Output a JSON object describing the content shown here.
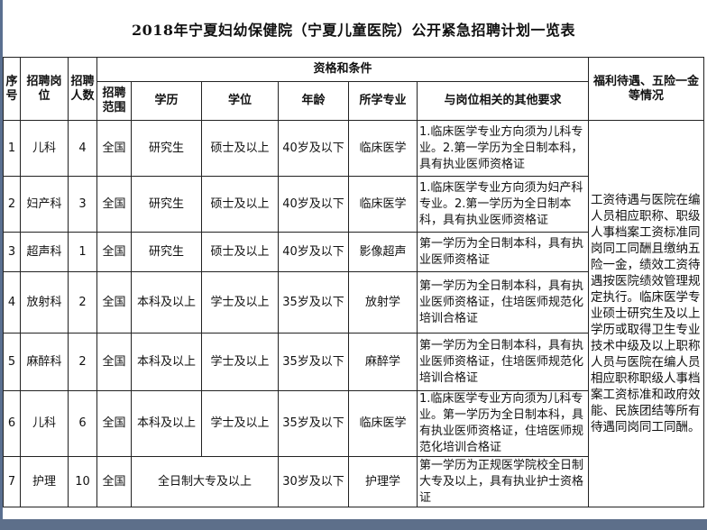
{
  "title": "2018年宁夏妇幼保健院（宁夏儿童医院）公开紧急招聘计划一览表",
  "headers": {
    "index": "序号",
    "position": "招聘岗位",
    "count": "招聘人数",
    "qualifications": "资格和条件",
    "scope": "招聘范围",
    "education": "学历",
    "degree": "学位",
    "age": "年龄",
    "major": "所学专业",
    "other": "与岗位相关的其他要求",
    "benefits": "福利待遇、五险一金等情况"
  },
  "rows": [
    {
      "index": "1",
      "position": "儿科",
      "count": "4",
      "scope": "全国",
      "education": "研究生",
      "degree": "硕士及以上",
      "age": "40岁及以下",
      "major": "临床医学",
      "other": "1.临床医学专业方向须为儿科专业。2.第一学历为全日制本科，具有执业医师资格证"
    },
    {
      "index": "2",
      "position": "妇产科",
      "count": "3",
      "scope": "全国",
      "education": "研究生",
      "degree": "硕士及以上",
      "age": "40岁及以下",
      "major": "临床医学",
      "other": "1.临床医学专业方向须为妇产科专业。2.第一学历为全日制本科，具有执业医师资格证"
    },
    {
      "index": "3",
      "position": "超声科",
      "count": "1",
      "scope": "全国",
      "education": "研究生",
      "degree": "硕士及以上",
      "age": "40岁及以下",
      "major": "影像超声",
      "other": "第一学历为全日制本科，具有执业医师资格证"
    },
    {
      "index": "4",
      "position": "放射科",
      "count": "2",
      "scope": "全国",
      "education": "本科及以上",
      "degree": "学士及以上",
      "age": "35岁及以下",
      "major": "放射学",
      "other": "第一学历为全日制本科，具有执业医师资格证，住培医师规范化培训合格证"
    },
    {
      "index": "5",
      "position": "麻醉科",
      "count": "2",
      "scope": "全国",
      "education": "本科及以上",
      "degree": "学士及以上",
      "age": "35岁及以下",
      "major": "麻醉学",
      "other": "第一学历为全日制本科，具有执业医师资格证，住培医师规范化培训合格证"
    },
    {
      "index": "6",
      "position": "儿科",
      "count": "6",
      "scope": "全国",
      "education": "本科及以上",
      "degree": "学士及以上",
      "age": "35岁及以下",
      "major": "临床医学",
      "other": "1.临床医学专业方向须为儿科专业。第一学历为全日制本科，具有执业医师资格证，住培医师规范化培训合格证"
    },
    {
      "index": "7",
      "position": "护理",
      "count": "10",
      "scope": "全国",
      "education": "全日制大专及以上",
      "age": "30岁及以下",
      "major": "护理学",
      "other": "第一学历为正规医学院校全日制大专及以上，具有执业护士资格证"
    }
  ],
  "benefits": "工资待遇与医院在编人员相应职称、职级人事档案工资标准同岗同工同酬且缴纳五险一金，绩效工资待遇按医院绩效管理规定执行。临床医学专业硕士研究生及以上学历或取得卫生专业技术中级及以上职称人员与医院在编人员相应职称职级人事档案工资标准和政府效能、民族团结等所有待遇同岗同工同酬。"
}
